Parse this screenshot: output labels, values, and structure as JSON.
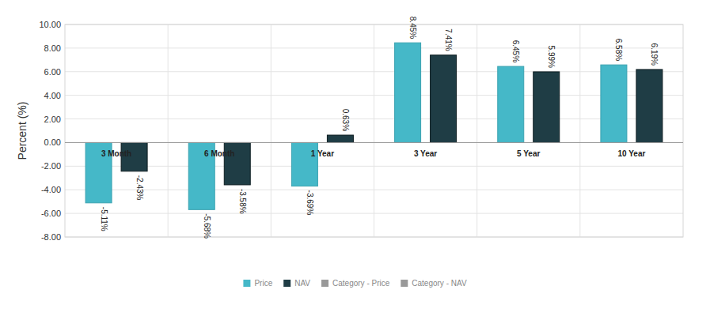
{
  "chart_data": {
    "type": "bar",
    "y_label": "Percent (%)",
    "categories": [
      "3 Month",
      "6 Month",
      "1 Year",
      "3 Year",
      "5 Year",
      "10 Year"
    ],
    "series": [
      {
        "name": "Price",
        "color": "#45b8c8",
        "values": [
          -5.11,
          -5.68,
          -3.69,
          8.45,
          6.45,
          6.58
        ],
        "value_labels": [
          "-5.11%",
          "-5.68%",
          "-3.69%",
          "8.45%",
          "6.45%",
          "6.58%"
        ]
      },
      {
        "name": "NAV",
        "color": "#1f3d45",
        "values": [
          -2.43,
          -3.58,
          0.63,
          7.41,
          5.99,
          6.19
        ],
        "value_labels": [
          "-2.43%",
          "-3.58%",
          "0.63%",
          "7.41%",
          "5.99%",
          "6.19%"
        ]
      },
      {
        "name": "Category - Price",
        "color": "#999999",
        "values": [
          null,
          null,
          null,
          null,
          null,
          null
        ]
      },
      {
        "name": "Category - NAV",
        "color": "#999999",
        "values": [
          null,
          null,
          null,
          null,
          null,
          null
        ]
      }
    ],
    "ylim": [
      -8,
      10
    ],
    "yticks": [
      {
        "value": -8,
        "label": "-8.00"
      },
      {
        "value": -6,
        "label": "-6.00"
      },
      {
        "value": -4,
        "label": "-4.00"
      },
      {
        "value": -2,
        "label": "-2.00"
      },
      {
        "value": 0,
        "label": "0.00"
      },
      {
        "value": 2,
        "label": "2.00"
      },
      {
        "value": 4,
        "label": "4.00"
      },
      {
        "value": 6,
        "label": "6.00"
      },
      {
        "value": 8,
        "label": "8.00"
      },
      {
        "value": 10,
        "label": "10.00"
      }
    ],
    "grid": true,
    "legend": "bottom",
    "data_labels": true
  }
}
